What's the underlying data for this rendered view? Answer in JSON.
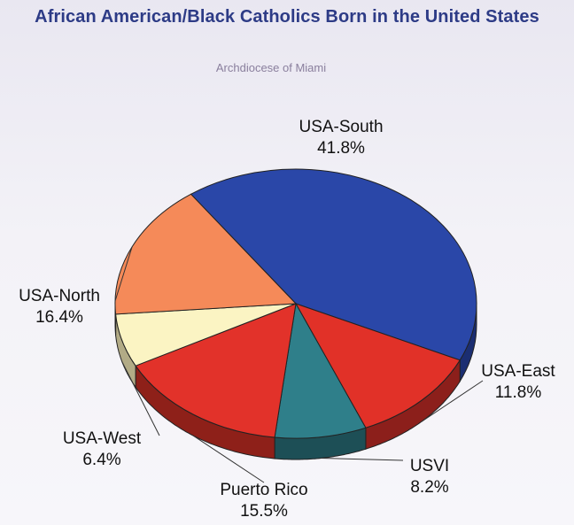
{
  "chart_data": {
    "type": "pie",
    "title": "African American/Black Catholics Born in the United States",
    "subtitle": "Archdiocese of Miami",
    "slices": [
      {
        "label": "USA-South",
        "value": 41.8,
        "value_label": "41.8%",
        "color": "#2a47a8",
        "side_color": "#1b2e72"
      },
      {
        "label": "USA-East",
        "value": 11.8,
        "value_label": "11.8%",
        "color": "#e13128",
        "side_color": "#8c1f1b"
      },
      {
        "label": "USVI",
        "value": 8.2,
        "value_label": "8.2%",
        "color": "#2f7f8a",
        "side_color": "#1d4f56"
      },
      {
        "label": "Puerto Rico",
        "value": 15.5,
        "value_label": "15.5%",
        "color": "#e2322a",
        "side_color": "#8e2019"
      },
      {
        "label": "USA-West",
        "value": 6.4,
        "value_label": "6.4%",
        "color": "#fbf4c3",
        "side_color": "#b2ab86"
      },
      {
        "label": "USA-North",
        "value": 16.4,
        "value_label": "16.4%",
        "color": "#f58a59",
        "side_color": "#a4522e"
      }
    ]
  }
}
